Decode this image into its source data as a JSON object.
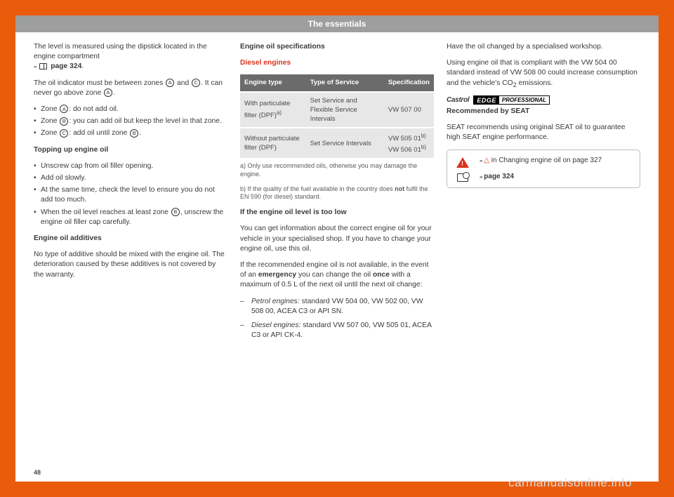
{
  "header": "The essentials",
  "page_number": "48",
  "watermark": "carmanualsonline.info",
  "col1": {
    "p1a": "The level is measured using the dipstick located in the engine compartment",
    "p1b": " page 324",
    "p2a": "The oil indicator must be between zones ",
    "p2b": " and ",
    "p2c": ". It can never go above zone ",
    "p2d": ".",
    "li1a": "Zone ",
    "li1b": ": do not add oil.",
    "li2a": "Zone ",
    "li2b": ": you can add oil but keep the level in that zone.",
    "li3a": "Zone ",
    "li3b": ": add oil until zone ",
    "li3c": ".",
    "h_top": "Topping up engine oil",
    "t1": "Unscrew cap from oil filler opening.",
    "t2": "Add oil slowly.",
    "t3": "At the same time, check the level to ensure you do not add too much.",
    "t4a": "When the oil level reaches at least zone ",
    "t4b": ", unscrew the engine oil filler cap carefully.",
    "h_add": "Engine oil additives",
    "add_p": "No type of additive should be mixed with the engine oil. The deterioration caused by these additives is not covered by the warranty."
  },
  "col2": {
    "h_spec": "Engine oil specifications",
    "h_diesel": "Diesel engines",
    "th1": "Engine type",
    "th2": "Type of Service",
    "th3": "Specification",
    "r1c1": "With particulate filter (DPF)",
    "r1c1_sup": "a)",
    "r1c2": "Set Service and Flexible Service Intervals",
    "r1c3": "VW 507 00",
    "r2c1": "Without particulate filter (DPF)",
    "r2c2": "Set Service Intervals",
    "r2c3a": "VW 505 01",
    "r2c3b": "VW 506 01",
    "r2c3_sup": "b)",
    "fn_a": "a)  Only use recommended oils, otherwise you may damage the engine.",
    "fn_b": "b)  If the quality of the fuel available in the country does ",
    "fn_b_bold": "not",
    "fn_b2": " fulfil the EN 590 (for diesel) standard.",
    "h_low": "If the engine oil level is too low",
    "low1": "You can get information about the correct engine oil for your vehicle in your specialised shop. If you have to change your engine oil, use this oil.",
    "low2a": "If the recommended engine oil is not available, in the event of an ",
    "low2b": "emergency",
    "low2c": " you can change the oil ",
    "low2d": "once",
    "low2e": " with a maximum of 0.5 L of the next oil until the next oil change:",
    "d1a": "Petrol engines:",
    "d1b": " standard VW 504 00, VW 502 00, VW 508 00, ACEA C3 or API SN.",
    "d2a": "Diesel engines:",
    "d2b": " standard VW 507 00, VW 505 01, ACEA C3 or API CK-4."
  },
  "col3": {
    "p1": "Have the oil changed by a specialised workshop.",
    "p2a": "Using engine oil that is compliant with the VW 504 00 standard instead of VW 508 00 could increase consumption and the vehicle's CO",
    "p2b": " emissions.",
    "castrol": "Castrol",
    "edge_a": "EDGE",
    "edge_b": "PROFESSIONAL",
    "rec": "Recommended by SEAT",
    "rec_p": "SEAT recommends using original SEAT oil to guarantee high SEAT engine performance.",
    "ref1a": " in Changing engine oil on page 327",
    "ref2": " page 324"
  },
  "zones": {
    "A": "A",
    "B": "B",
    "C": "C"
  }
}
